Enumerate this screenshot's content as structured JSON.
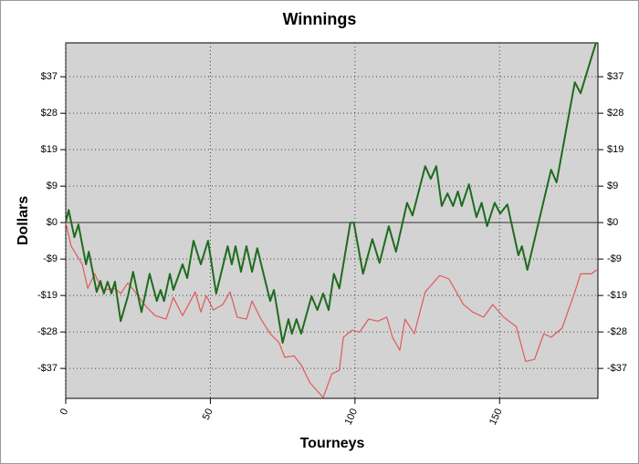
{
  "chart_data": {
    "type": "line",
    "title": "Winnings",
    "x_label": "Tourneys",
    "y_label": "Dollars",
    "xlim": [
      0,
      184
    ],
    "xticks": [
      0,
      50,
      100,
      150
    ],
    "ylim": [
      -44.6,
      45.6
    ],
    "yticks": [
      {
        "value": -37,
        "label": "-$37"
      },
      {
        "value": -27.75,
        "label": "-$28"
      },
      {
        "value": -18.5,
        "label": "-$19"
      },
      {
        "value": -9.25,
        "label": "-$9"
      },
      {
        "value": 0,
        "label": "$0"
      },
      {
        "value": 9.25,
        "label": "$9"
      },
      {
        "value": 18.5,
        "label": "$19"
      },
      {
        "value": 27.75,
        "label": "$28"
      },
      {
        "value": 37,
        "label": "$37"
      }
    ],
    "grid": true,
    "mirror_y_axis": true,
    "series": [
      {
        "color": "#e05a5a",
        "x": [
          0,
          1.9,
          5.7,
          7.6,
          10,
          12.6,
          17,
          19,
          21.5,
          24,
          27.8,
          30.9,
          34.7,
          37.2,
          40.4,
          44.8,
          46.7,
          48.6,
          51,
          54.3,
          56.8,
          59.3,
          62.5,
          64.4,
          67.5,
          70.7,
          73.8,
          75.7,
          78.9,
          81.4,
          84.5,
          89,
          92,
          94.6,
          96,
          99,
          101.6,
          104.7,
          107.9,
          111,
          113,
          115.5,
          117.3,
          120.5,
          124.3,
          129.3,
          132.5,
          137.5,
          140.7,
          144.5,
          147.6,
          151.4,
          155.8,
          159,
          162.1,
          165.3,
          167.8,
          171.6,
          176,
          178,
          181.7,
          183.6
        ],
        "values": [
          0,
          -6,
          -10.6,
          -16.7,
          -13,
          -17.1,
          -16.7,
          -18,
          -15.3,
          -17.6,
          -21.3,
          -23.6,
          -24.5,
          -19,
          -23.6,
          -17.6,
          -22.7,
          -18.5,
          -22.2,
          -20.8,
          -17.6,
          -24,
          -24.5,
          -19.9,
          -24.5,
          -28.2,
          -30.5,
          -34.2,
          -33.8,
          -36.1,
          -40.7,
          -44.4,
          -38.4,
          -37.5,
          -29.1,
          -27.3,
          -27.8,
          -24.5,
          -25,
          -24,
          -29.1,
          -32.4,
          -24.5,
          -28.2,
          -17.6,
          -13.4,
          -14.3,
          -20.8,
          -22.7,
          -24,
          -20.8,
          -24,
          -26.4,
          -35.2,
          -34.7,
          -28.2,
          -29.1,
          -26.8,
          -17.6,
          -13,
          -13,
          -12
        ]
      },
      {
        "color": "#1e6b1e",
        "x": [
          0,
          1,
          3,
          4.4,
          7,
          8,
          10.7,
          12,
          13.2,
          14.5,
          15.8,
          17,
          19,
          21.5,
          23.3,
          26.2,
          29,
          31.5,
          32.8,
          34,
          36,
          37.2,
          40.4,
          42,
          44.2,
          46.7,
          49.2,
          52,
          56,
          57.4,
          58.7,
          60.6,
          62.5,
          64.4,
          66.2,
          70.7,
          72,
          75,
          77,
          78.2,
          79.8,
          81.4,
          85,
          87,
          89,
          90.9,
          92.7,
          94.6,
          98.4,
          99.6,
          102.8,
          106,
          108.5,
          111.7,
          114.2,
          118,
          119.9,
          124.3,
          126.2,
          128.1,
          130,
          132,
          133.9,
          135.6,
          136.9,
          139.4,
          142,
          143.8,
          145.7,
          148.3,
          150.2,
          152.7,
          156.5,
          157.7,
          159.6,
          167.8,
          169.7,
          176,
          178,
          183.3
        ],
        "values": [
          0,
          3.2,
          -3.7,
          -0.5,
          -10.6,
          -7.4,
          -17.6,
          -14.8,
          -18,
          -15,
          -18,
          -15,
          -25,
          -18.7,
          -12.5,
          -22.7,
          -13,
          -19.9,
          -17.1,
          -19.9,
          -13,
          -17.1,
          -10.6,
          -14.1,
          -4.6,
          -10.6,
          -4.6,
          -18,
          -6,
          -10.6,
          -6,
          -12.5,
          -6,
          -12.5,
          -6.5,
          -19.9,
          -17.1,
          -30.5,
          -24.5,
          -28.2,
          -24.5,
          -28.2,
          -18.7,
          -22.2,
          -18,
          -22.2,
          -13,
          -16.7,
          0,
          0,
          -13,
          -4.2,
          -10.2,
          -0.9,
          -7.4,
          5,
          1.8,
          14.3,
          11.1,
          14.3,
          4.2,
          7.4,
          4.2,
          7.9,
          4.2,
          9.7,
          1.4,
          5,
          -0.9,
          5,
          2.3,
          4.6,
          -8.3,
          -6,
          -12,
          13.4,
          10.2,
          35.6,
          32.8,
          45.6
        ]
      }
    ]
  }
}
